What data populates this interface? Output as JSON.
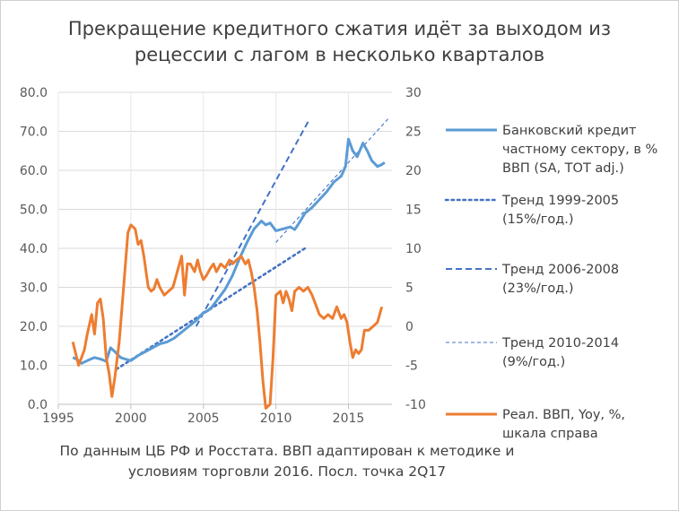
{
  "chart_data": {
    "type": "line",
    "title_lines": [
      "Прекращение кредитного сжатия идёт за выходом из",
      "рецессии с лагом в несколько кварталов"
    ],
    "note_lines": [
      "По данным ЦБ РФ и Росстата. ВВП адаптирован к методике и",
      "условиям торговли 2016. Посл. точка 2Q17"
    ],
    "x_axis": {
      "min": 1995,
      "max": 2018,
      "ticks": [
        "1995",
        "2000",
        "2005",
        "2010",
        "2015"
      ],
      "tick_values": [
        1995,
        2000,
        2005,
        2010,
        2015
      ]
    },
    "y_left": {
      "min": 0,
      "max": 80,
      "ticks": [
        "0.0",
        "10.0",
        "20.0",
        "30.0",
        "40.0",
        "50.0",
        "60.0",
        "70.0",
        "80.0"
      ],
      "tick_values": [
        0,
        10,
        20,
        30,
        40,
        50,
        60,
        70,
        80
      ]
    },
    "y_right": {
      "min": -10,
      "max": 30,
      "ticks": [
        "-10",
        "-5",
        "0",
        "5",
        "10",
        "15",
        "20",
        "25",
        "30"
      ],
      "tick_values": [
        -10,
        -5,
        0,
        5,
        10,
        15,
        20,
        25,
        30
      ]
    },
    "grid": true,
    "legend_position": "right",
    "series": [
      {
        "name_lines": [
          "Банковский кредит",
          "частному сектору, в %",
          "ВВП (SA, ТОТ adj.)"
        ],
        "axis": "left",
        "style": "solid",
        "color": "#5b9bd5",
        "points": [
          [
            1996.0,
            12.0
          ],
          [
            1996.3,
            11.5
          ],
          [
            1996.6,
            10.5
          ],
          [
            1997.0,
            11.2
          ],
          [
            1997.5,
            12.0
          ],
          [
            1998.0,
            11.5
          ],
          [
            1998.3,
            11.0
          ],
          [
            1998.6,
            14.5
          ],
          [
            1998.9,
            13.5
          ],
          [
            1999.3,
            12.0
          ],
          [
            1999.7,
            11.5
          ],
          [
            2000.0,
            11.2
          ],
          [
            2000.5,
            12.5
          ],
          [
            2001.0,
            13.5
          ],
          [
            2001.5,
            14.5
          ],
          [
            2002.0,
            15.5
          ],
          [
            2002.5,
            16.0
          ],
          [
            2003.0,
            17.0
          ],
          [
            2003.5,
            18.5
          ],
          [
            2004.0,
            20.0
          ],
          [
            2004.5,
            21.5
          ],
          [
            2005.0,
            23.5
          ],
          [
            2005.3,
            24.0
          ],
          [
            2005.6,
            25.0
          ],
          [
            2006.0,
            27.0
          ],
          [
            2006.5,
            29.5
          ],
          [
            2007.0,
            33.0
          ],
          [
            2007.5,
            37.5
          ],
          [
            2008.0,
            41.5
          ],
          [
            2008.5,
            45.0
          ],
          [
            2009.0,
            47.0
          ],
          [
            2009.3,
            46.0
          ],
          [
            2009.6,
            46.5
          ],
          [
            2010.0,
            44.5
          ],
          [
            2010.5,
            45.0
          ],
          [
            2011.0,
            45.5
          ],
          [
            2011.3,
            44.8
          ],
          [
            2011.6,
            46.5
          ],
          [
            2012.0,
            49.0
          ],
          [
            2012.5,
            50.5
          ],
          [
            2013.0,
            52.5
          ],
          [
            2013.5,
            54.5
          ],
          [
            2014.0,
            57.0
          ],
          [
            2014.5,
            58.5
          ],
          [
            2014.8,
            61.0
          ],
          [
            2015.0,
            68.0
          ],
          [
            2015.3,
            65.0
          ],
          [
            2015.6,
            63.5
          ],
          [
            2016.0,
            67.0
          ],
          [
            2016.3,
            65.0
          ],
          [
            2016.6,
            62.5
          ],
          [
            2017.0,
            61.0
          ],
          [
            2017.3,
            61.5
          ],
          [
            2017.5,
            62.0
          ]
        ]
      },
      {
        "name_lines": [
          "Тренд 1999-2005",
          "(15%/год.)"
        ],
        "axis": "left",
        "style": "dotted",
        "color": "#4472c4",
        "points": [
          [
            1999.0,
            9.0
          ],
          [
            2012.0,
            40.0
          ]
        ]
      },
      {
        "name_lines": [
          "Тренд 2006-2008",
          "(23%/год.)"
        ],
        "axis": "left",
        "style": "dashed",
        "color": "#4472c4",
        "points": [
          [
            2004.5,
            20.0
          ],
          [
            2012.3,
            73.0
          ]
        ]
      },
      {
        "name_lines": [
          "Тренд 2010-2014",
          "(9%/год.)"
        ],
        "axis": "left",
        "style": "thin-dashed",
        "color": "#4472c4",
        "points": [
          [
            2010.0,
            41.5
          ],
          [
            2017.8,
            73.5
          ]
        ]
      },
      {
        "name_lines": [
          "Реал. ВВП, Yoy, %,",
          "шкала справа"
        ],
        "axis": "right",
        "style": "solid",
        "color": "#ed7d31",
        "points": [
          [
            1996.0,
            -2.0
          ],
          [
            1996.2,
            -3.5
          ],
          [
            1996.4,
            -5.0
          ],
          [
            1996.6,
            -4.0
          ],
          [
            1996.8,
            -3.0
          ],
          [
            1997.0,
            -1.0
          ],
          [
            1997.3,
            1.5
          ],
          [
            1997.5,
            -1.0
          ],
          [
            1997.7,
            3.0
          ],
          [
            1997.9,
            3.5
          ],
          [
            1998.1,
            1.0
          ],
          [
            1998.3,
            -4.0
          ],
          [
            1998.5,
            -6.0
          ],
          [
            1998.7,
            -9.0
          ],
          [
            1998.9,
            -6.5
          ],
          [
            1999.2,
            -2.0
          ],
          [
            1999.5,
            5.0
          ],
          [
            1999.8,
            12.0
          ],
          [
            2000.0,
            13.0
          ],
          [
            2000.3,
            12.5
          ],
          [
            2000.5,
            10.5
          ],
          [
            2000.7,
            11.0
          ],
          [
            2000.9,
            9.0
          ],
          [
            2001.2,
            5.0
          ],
          [
            2001.4,
            4.5
          ],
          [
            2001.6,
            4.8
          ],
          [
            2001.8,
            6.0
          ],
          [
            2002.0,
            5.0
          ],
          [
            2002.3,
            4.0
          ],
          [
            2002.6,
            4.5
          ],
          [
            2002.9,
            5.0
          ],
          [
            2003.2,
            7.0
          ],
          [
            2003.5,
            9.0
          ],
          [
            2003.7,
            4.0
          ],
          [
            2003.9,
            8.0
          ],
          [
            2004.1,
            8.0
          ],
          [
            2004.4,
            7.0
          ],
          [
            2004.6,
            8.5
          ],
          [
            2004.8,
            7.0
          ],
          [
            2005.0,
            6.0
          ],
          [
            2005.2,
            6.5
          ],
          [
            2005.5,
            7.5
          ],
          [
            2005.7,
            8.0
          ],
          [
            2005.9,
            7.0
          ],
          [
            2006.2,
            8.0
          ],
          [
            2006.5,
            7.5
          ],
          [
            2006.8,
            8.5
          ],
          [
            2007.0,
            8.0
          ],
          [
            2007.3,
            8.5
          ],
          [
            2007.6,
            9.0
          ],
          [
            2007.9,
            8.0
          ],
          [
            2008.1,
            8.5
          ],
          [
            2008.3,
            7.0
          ],
          [
            2008.5,
            5.0
          ],
          [
            2008.7,
            2.0
          ],
          [
            2008.9,
            -2.0
          ],
          [
            2009.1,
            -7.0
          ],
          [
            2009.3,
            -10.5
          ],
          [
            2009.6,
            -10.0
          ],
          [
            2009.8,
            -4.0
          ],
          [
            2010.0,
            4.0
          ],
          [
            2010.3,
            4.5
          ],
          [
            2010.5,
            3.0
          ],
          [
            2010.7,
            4.5
          ],
          [
            2010.9,
            3.5
          ],
          [
            2011.1,
            2.0
          ],
          [
            2011.3,
            4.5
          ],
          [
            2011.6,
            5.0
          ],
          [
            2011.9,
            4.5
          ],
          [
            2012.2,
            5.0
          ],
          [
            2012.5,
            4.0
          ],
          [
            2012.8,
            2.5
          ],
          [
            2013.0,
            1.5
          ],
          [
            2013.3,
            1.0
          ],
          [
            2013.6,
            1.5
          ],
          [
            2013.9,
            1.0
          ],
          [
            2014.2,
            2.5
          ],
          [
            2014.5,
            1.0
          ],
          [
            2014.7,
            1.5
          ],
          [
            2014.9,
            0.5
          ],
          [
            2015.1,
            -2.0
          ],
          [
            2015.3,
            -4.0
          ],
          [
            2015.5,
            -3.0
          ],
          [
            2015.7,
            -3.5
          ],
          [
            2015.9,
            -3.0
          ],
          [
            2016.1,
            -0.5
          ],
          [
            2016.4,
            -0.5
          ],
          [
            2016.7,
            0.0
          ],
          [
            2017.0,
            0.5
          ],
          [
            2017.3,
            2.5
          ]
        ]
      }
    ]
  }
}
